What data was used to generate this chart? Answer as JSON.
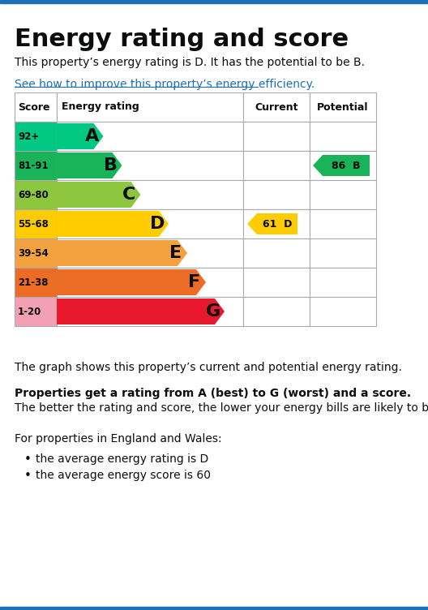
{
  "title": "Energy rating and score",
  "subtitle": "This property’s energy rating is D. It has the potential to be B.",
  "link_text": "See how to improve this property’s energy efficiency.",
  "header_score": "Score",
  "header_rating": "Energy rating",
  "header_current": "Current",
  "header_potential": "Potential",
  "ratings": [
    {
      "score": "92+",
      "letter": "A",
      "color": "#00c781",
      "bar_width": 0.25
    },
    {
      "score": "81-91",
      "letter": "B",
      "color": "#19b459",
      "bar_width": 0.35
    },
    {
      "score": "69-80",
      "letter": "C",
      "color": "#8dc63f",
      "bar_width": 0.45
    },
    {
      "score": "55-68",
      "letter": "D",
      "color": "#ffcc00",
      "bar_width": 0.6
    },
    {
      "score": "39-54",
      "letter": "E",
      "color": "#f4a140",
      "bar_width": 0.7
    },
    {
      "score": "21-38",
      "letter": "F",
      "color": "#ec6b25",
      "bar_width": 0.8
    },
    {
      "score": "1-20",
      "letter": "G",
      "color": "#e8192c",
      "bar_width": 0.9
    }
  ],
  "score_col_bg": [
    "#00c781",
    "#19b459",
    "#8dc63f",
    "#ffcc00",
    "#f4a140",
    "#ec6b25",
    "#f4a0b4"
  ],
  "current": {
    "value": 61,
    "letter": "D",
    "color": "#ffcc00",
    "row": 3
  },
  "potential": {
    "value": 86,
    "letter": "B",
    "color": "#19b459",
    "row": 1
  },
  "footer_text1": "The graph shows this property’s current and potential energy rating.",
  "footer_bold": "Properties get a rating from A (best) to G (worst) and a score.",
  "footer_text2": "The better the rating and score, the lower your energy bills are likely to be.",
  "footer_text3": "For properties in England and Wales:",
  "bullet1": "the average energy rating is D",
  "bullet2": "the average energy score is 60",
  "top_bar_color": "#1d70b8",
  "bottom_bar_color": "#1d70b8",
  "bg_color": "#ffffff"
}
